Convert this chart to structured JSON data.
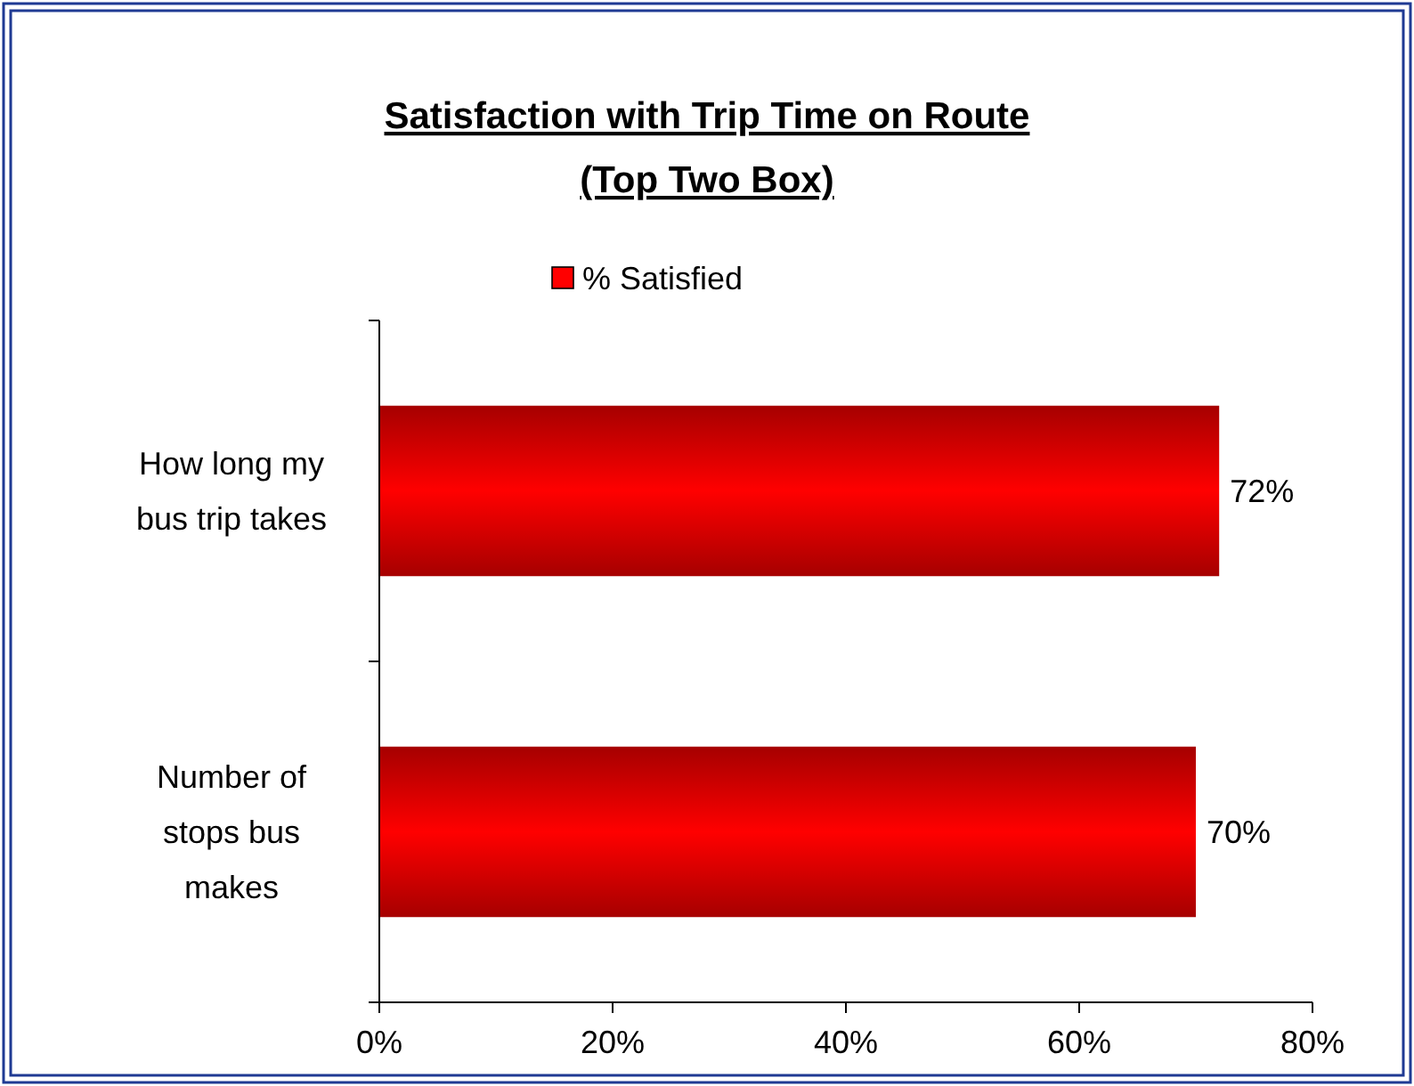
{
  "chart_data": {
    "type": "bar",
    "orientation": "horizontal",
    "title": "Satisfaction with Trip Time on Route",
    "subtitle": "(Top Two Box)",
    "categories": [
      "How long my bus trip takes",
      "Number of stops bus makes"
    ],
    "series": [
      {
        "name": "% Satisfied",
        "color": "#ff0000",
        "values": [
          72,
          70
        ],
        "value_labels": [
          "72%",
          "70%"
        ]
      }
    ],
    "xlim": [
      0,
      80
    ],
    "xticks": [
      {
        "value": 0,
        "label": "0%"
      },
      {
        "value": 20,
        "label": "20%"
      },
      {
        "value": 40,
        "label": "40%"
      },
      {
        "value": 60,
        "label": "60%"
      },
      {
        "value": 80,
        "label": "80%"
      }
    ],
    "grid": false,
    "legend": "top"
  }
}
